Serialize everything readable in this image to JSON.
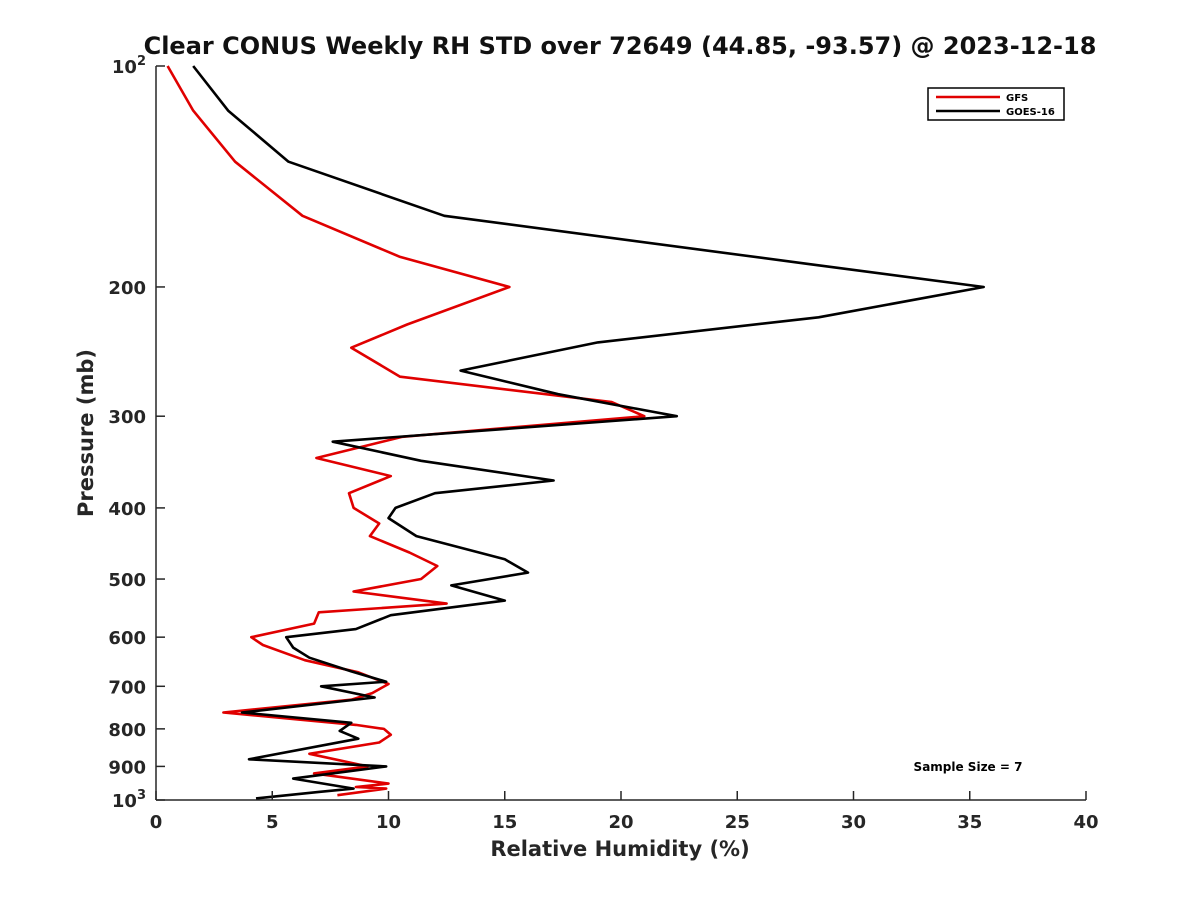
{
  "chart_data": {
    "type": "line",
    "title": "Clear CONUS Weekly RH STD over 72649 (44.85, -93.57) @ 2023-12-18",
    "xlabel": "Relative Humidity (%)",
    "ylabel": "Pressure (mb)",
    "xlim": [
      0,
      40
    ],
    "ylim": [
      100,
      1000
    ],
    "y_scale": "log",
    "y_reversed": true,
    "grid": false,
    "legend_position": "top-right",
    "x_ticks": [
      "0",
      "5",
      "10",
      "15",
      "20",
      "25",
      "30",
      "35",
      "40"
    ],
    "y_ticks": [
      {
        "value": 100,
        "base": "10",
        "exp": "2"
      },
      {
        "value": 200,
        "label": "200"
      },
      {
        "value": 300,
        "label": "300"
      },
      {
        "value": 400,
        "label": "400"
      },
      {
        "value": 500,
        "label": "500"
      },
      {
        "value": 600,
        "label": "600"
      },
      {
        "value": 700,
        "label": "700"
      },
      {
        "value": 800,
        "label": "800"
      },
      {
        "value": 900,
        "label": "900"
      },
      {
        "value": 1000,
        "base": "10",
        "exp": "3"
      }
    ],
    "series": [
      {
        "name": "GFS",
        "color": "#e00000",
        "points": [
          [
            0.5,
            100
          ],
          [
            1.6,
            115
          ],
          [
            3.4,
            135
          ],
          [
            6.3,
            160
          ],
          [
            10.5,
            182
          ],
          [
            15.2,
            200
          ],
          [
            10.8,
            225
          ],
          [
            8.4,
            242
          ],
          [
            10.5,
            265
          ],
          [
            19.6,
            287
          ],
          [
            21.0,
            300
          ],
          [
            10.6,
            320
          ],
          [
            6.9,
            342
          ],
          [
            10.1,
            362
          ],
          [
            8.3,
            382
          ],
          [
            8.5,
            400
          ],
          [
            9.6,
            420
          ],
          [
            9.2,
            437
          ],
          [
            10.9,
            460
          ],
          [
            12.1,
            480
          ],
          [
            11.4,
            500
          ],
          [
            8.5,
            520
          ],
          [
            12.5,
            540
          ],
          [
            7.0,
            555
          ],
          [
            6.8,
            575
          ],
          [
            4.1,
            600
          ],
          [
            4.6,
            615
          ],
          [
            6.4,
            645
          ],
          [
            8.7,
            670
          ],
          [
            10.0,
            695
          ],
          [
            9.3,
            715
          ],
          [
            8.4,
            730
          ],
          [
            2.9,
            760
          ],
          [
            8.6,
            790
          ],
          [
            9.8,
            800
          ],
          [
            10.1,
            815
          ],
          [
            9.6,
            835
          ],
          [
            6.6,
            865
          ],
          [
            9.1,
            900
          ],
          [
            6.8,
            920
          ],
          [
            10.0,
            950
          ],
          [
            8.6,
            960
          ],
          [
            9.9,
            965
          ],
          [
            7.8,
            985
          ]
        ]
      },
      {
        "name": "GOES-16",
        "color": "#000000",
        "points": [
          [
            1.6,
            100
          ],
          [
            3.1,
            115
          ],
          [
            5.7,
            135
          ],
          [
            12.4,
            160
          ],
          [
            28.0,
            186
          ],
          [
            35.6,
            200
          ],
          [
            28.5,
            220
          ],
          [
            19.0,
            238
          ],
          [
            13.1,
            260
          ],
          [
            17.3,
            280
          ],
          [
            21.4,
            296
          ],
          [
            22.4,
            300
          ],
          [
            7.6,
            325
          ],
          [
            11.4,
            345
          ],
          [
            17.1,
            367
          ],
          [
            12.0,
            382
          ],
          [
            10.3,
            400
          ],
          [
            10.0,
            413
          ],
          [
            11.2,
            437
          ],
          [
            15.0,
            470
          ],
          [
            16.0,
            490
          ],
          [
            12.7,
            510
          ],
          [
            15.0,
            535
          ],
          [
            10.1,
            560
          ],
          [
            8.6,
            585
          ],
          [
            5.6,
            600
          ],
          [
            5.9,
            620
          ],
          [
            6.6,
            640
          ],
          [
            8.4,
            668
          ],
          [
            9.9,
            690
          ],
          [
            7.1,
            700
          ],
          [
            9.4,
            725
          ],
          [
            3.7,
            760
          ],
          [
            8.4,
            785
          ],
          [
            7.9,
            805
          ],
          [
            8.7,
            825
          ],
          [
            4.0,
            880
          ],
          [
            9.9,
            900
          ],
          [
            5.9,
            935
          ],
          [
            8.5,
            965
          ],
          [
            7.0,
            975
          ],
          [
            4.3,
            995
          ]
        ]
      }
    ],
    "annotations": [
      "Sample Size = 7"
    ]
  }
}
